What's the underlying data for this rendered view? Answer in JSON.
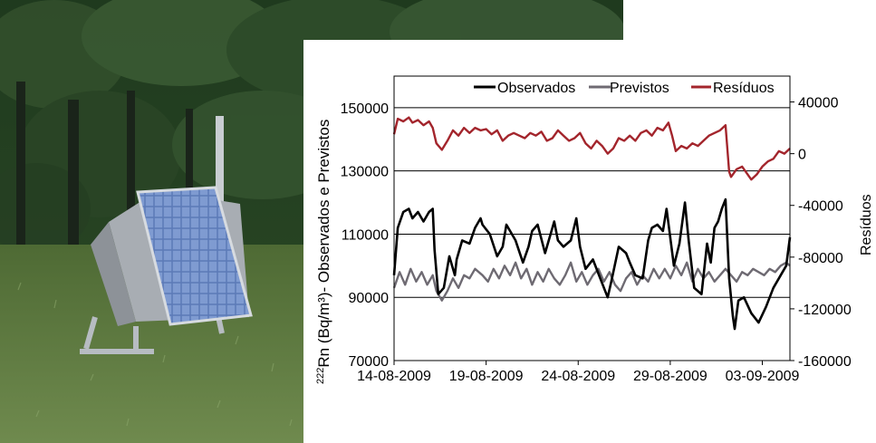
{
  "colors": {
    "observed": "#000000",
    "predicted": "#6e6a72",
    "residuals": "#a3252c",
    "grid": "#000000"
  },
  "chart_data": {
    "type": "line",
    "title": "",
    "xlabel": "",
    "ylabel_left_prefix": "222",
    "ylabel_left": "Rn (Bq/m³)- Observados e Previstos",
    "ylabel_right": "Resíduos",
    "ylim_left": [
      70000,
      160000
    ],
    "ylim_right": [
      -160000,
      60000
    ],
    "yticks_left": [
      "70000",
      "90000",
      "110000",
      "130000",
      "150000"
    ],
    "yticks_right": [
      "-160000",
      "-120000",
      "-80000",
      "-40000",
      "0",
      "40000"
    ],
    "xticks": [
      "14-08-2009",
      "19-08-2009",
      "24-08-2009",
      "29-08-2009",
      "03-09-2009"
    ],
    "x_range_days": [
      0,
      21.5
    ],
    "legend_position": "top",
    "legend": [
      {
        "name": "Observados",
        "series": "observed"
      },
      {
        "name": "Previstos",
        "series": "predicted"
      },
      {
        "name": "Resíduos",
        "series": "residuals"
      }
    ],
    "series": [
      {
        "key": "observed",
        "name": "Observados",
        "axis": "left",
        "x": [
          0,
          0.2,
          0.5,
          0.8,
          1.0,
          1.3,
          1.6,
          1.9,
          2.1,
          2.2,
          2.4,
          2.7,
          3.0,
          3.3,
          3.4,
          3.7,
          4.1,
          4.4,
          4.7,
          4.8,
          5.2,
          5.6,
          5.9,
          6.1,
          6.3,
          6.6,
          7.0,
          7.3,
          7.5,
          7.8,
          8.2,
          8.5,
          8.7,
          8.9,
          9.2,
          9.6,
          9.9,
          10.1,
          10.4,
          10.8,
          11.2,
          11.6,
          11.8,
          12.2,
          12.6,
          12.8,
          13.1,
          13.5,
          13.8,
          14.0,
          14.3,
          14.6,
          14.8,
          15.2,
          15.5,
          15.8,
          16.0,
          16.3,
          16.7,
          17.0,
          17.2,
          17.4,
          17.6,
          17.8,
          18.0,
          18.2,
          18.4,
          18.5,
          18.7,
          19.0,
          19.4,
          19.8,
          20.2,
          20.6,
          21.0,
          21.3,
          21.5
        ],
        "values": [
          97000,
          112000,
          117000,
          118000,
          115000,
          117000,
          114000,
          117000,
          118000,
          105000,
          91000,
          93000,
          103000,
          97000,
          102000,
          108000,
          107000,
          112000,
          115000,
          113000,
          110000,
          103000,
          106000,
          113000,
          111000,
          108000,
          101000,
          106000,
          111000,
          113000,
          104000,
          110000,
          114000,
          108000,
          106000,
          108000,
          115000,
          106000,
          99000,
          102000,
          96000,
          90000,
          95000,
          106000,
          104000,
          101000,
          97000,
          96000,
          108000,
          112000,
          113000,
          111000,
          118000,
          100000,
          107000,
          120000,
          108000,
          93000,
          91000,
          107000,
          101000,
          112000,
          114000,
          118000,
          121000,
          96000,
          84000,
          80000,
          89000,
          90000,
          85000,
          82000,
          87000,
          93000,
          97000,
          100000,
          109000
        ]
      },
      {
        "key": "predicted",
        "name": "Previstos",
        "axis": "left",
        "x": [
          0,
          0.3,
          0.6,
          0.9,
          1.2,
          1.5,
          1.8,
          2.1,
          2.3,
          2.6,
          2.9,
          3.2,
          3.5,
          3.8,
          4.1,
          4.4,
          4.8,
          5.1,
          5.4,
          5.7,
          6.0,
          6.3,
          6.6,
          6.9,
          7.2,
          7.5,
          7.8,
          8.1,
          8.4,
          8.7,
          9.0,
          9.3,
          9.6,
          9.9,
          10.2,
          10.5,
          10.8,
          11.1,
          11.4,
          11.7,
          12.0,
          12.3,
          12.6,
          12.9,
          13.2,
          13.5,
          13.8,
          14.1,
          14.4,
          14.7,
          15.0,
          15.3,
          15.6,
          15.9,
          16.2,
          16.5,
          16.8,
          17.1,
          17.4,
          17.7,
          18.0,
          18.3,
          18.6,
          18.9,
          19.2,
          19.5,
          19.8,
          20.1,
          20.4,
          20.7,
          21.0,
          21.3,
          21.5
        ],
        "values": [
          93000,
          98000,
          94000,
          99000,
          95000,
          98000,
          94000,
          97000,
          92000,
          89000,
          92000,
          96000,
          93000,
          97000,
          96000,
          99000,
          97000,
          95000,
          99000,
          96000,
          100000,
          97000,
          101000,
          96000,
          99000,
          94000,
          98000,
          95000,
          99000,
          96000,
          94000,
          97000,
          101000,
          95000,
          98000,
          94000,
          97000,
          99000,
          95000,
          98000,
          94000,
          92000,
          96000,
          98000,
          94000,
          97000,
          95000,
          99000,
          96000,
          99000,
          96000,
          100000,
          97000,
          101000,
          95000,
          99000,
          96000,
          98000,
          95000,
          97000,
          99000,
          97000,
          95000,
          98000,
          97000,
          99000,
          98000,
          97000,
          99000,
          98000,
          100000,
          101000,
          100000
        ]
      },
      {
        "key": "residuals",
        "name": "Resíduos",
        "axis": "right",
        "x": [
          0,
          0.2,
          0.5,
          0.8,
          1.0,
          1.3,
          1.6,
          1.9,
          2.1,
          2.3,
          2.6,
          2.9,
          3.2,
          3.5,
          3.8,
          4.1,
          4.4,
          4.7,
          5.0,
          5.3,
          5.6,
          5.9,
          6.2,
          6.5,
          6.8,
          7.1,
          7.4,
          7.7,
          8.0,
          8.3,
          8.6,
          8.9,
          9.2,
          9.5,
          9.8,
          10.1,
          10.4,
          10.7,
          11.0,
          11.3,
          11.6,
          11.9,
          12.2,
          12.5,
          12.8,
          13.1,
          13.4,
          13.7,
          14.0,
          14.3,
          14.6,
          14.9,
          15.1,
          15.3,
          15.6,
          15.9,
          16.2,
          16.5,
          16.8,
          17.1,
          17.4,
          17.7,
          18.0,
          18.2,
          18.3,
          18.6,
          18.9,
          19.1,
          19.4,
          19.7,
          20.0,
          20.3,
          20.6,
          20.9,
          21.2,
          21.5
        ],
        "values": [
          15000,
          27000,
          25000,
          28000,
          24000,
          26000,
          22000,
          25000,
          20000,
          8000,
          3000,
          10000,
          18000,
          14000,
          20000,
          16000,
          20000,
          18000,
          19000,
          15000,
          18000,
          10000,
          14000,
          16000,
          14000,
          12000,
          16000,
          14000,
          17000,
          10000,
          12000,
          18000,
          14000,
          10000,
          12000,
          16000,
          8000,
          4000,
          10000,
          6000,
          0,
          4000,
          12000,
          10000,
          14000,
          10000,
          16000,
          18000,
          14000,
          20000,
          18000,
          24000,
          14000,
          2000,
          6000,
          4000,
          8000,
          6000,
          10000,
          14000,
          16000,
          18000,
          22000,
          -14000,
          -18000,
          -12000,
          -10000,
          -14000,
          -20000,
          -16000,
          -10000,
          -6000,
          -4000,
          2000,
          0,
          4000
        ]
      }
    ]
  }
}
